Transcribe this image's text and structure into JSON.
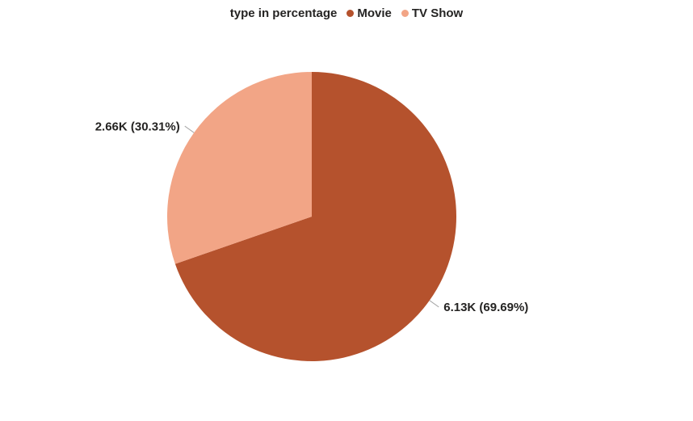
{
  "header": {
    "title": "type in percentage",
    "legend": [
      {
        "label": "Movie"
      },
      {
        "label": "TV Show"
      }
    ]
  },
  "chart_data": {
    "type": "pie",
    "title": "type in percentage",
    "legend_position": "top",
    "label_color": "#252423",
    "leader_line_color": "#a6a6a6",
    "background_color": "#ffffff",
    "slices": [
      {
        "label": "Movie",
        "value": 6130,
        "display_value": "6.13K",
        "percent": 69.69,
        "display": "6.13K (69.69%)",
        "color": "#b5522d"
      },
      {
        "label": "TV Show",
        "value": 2660,
        "display_value": "2.66K",
        "percent": 30.31,
        "display": "2.66K (30.31%)",
        "color": "#f2a586"
      }
    ]
  }
}
